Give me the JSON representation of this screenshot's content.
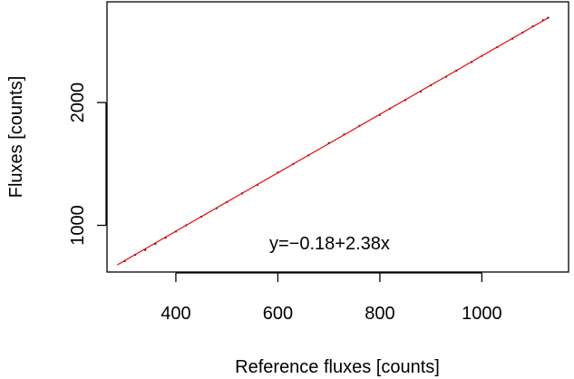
{
  "chart_data": {
    "type": "scatter",
    "xlabel": "Reference fluxes [counts]",
    "ylabel": "Fluxes [counts]",
    "xlim": [
      265,
      1170
    ],
    "ylim": [
      620,
      2820
    ],
    "x_ticks": [
      400,
      600,
      800,
      1000
    ],
    "y_ticks": [
      1000,
      2000
    ],
    "x_tick_labels": [
      "400",
      "600",
      "800",
      "1000"
    ],
    "y_tick_labels": [
      "1000",
      "2000"
    ],
    "grid": false,
    "annotation": "y=−0.18+2.38x",
    "fit_line": {
      "intercept": -0.18,
      "slope": 2.38,
      "x_start": 285,
      "x_end": 1130,
      "color": "#e41a1c"
    },
    "point_color": "#000000",
    "point_sample": [
      [
        300,
        710
      ],
      [
        320,
        760
      ],
      [
        340,
        800
      ],
      [
        360,
        850
      ],
      [
        380,
        900
      ],
      [
        400,
        950
      ],
      [
        420,
        1000
      ],
      [
        450,
        1070
      ],
      [
        480,
        1140
      ],
      [
        500,
        1190
      ],
      [
        530,
        1260
      ],
      [
        560,
        1330
      ],
      [
        600,
        1430
      ],
      [
        630,
        1500
      ],
      [
        660,
        1570
      ],
      [
        700,
        1670
      ],
      [
        730,
        1740
      ],
      [
        760,
        1810
      ],
      [
        800,
        1900
      ],
      [
        820,
        1950
      ],
      [
        850,
        2020
      ],
      [
        880,
        2090
      ],
      [
        900,
        2140
      ],
      [
        930,
        2210
      ],
      [
        950,
        2260
      ],
      [
        980,
        2330
      ],
      [
        1000,
        2380
      ],
      [
        1030,
        2450
      ],
      [
        1060,
        2520
      ],
      [
        1080,
        2570
      ],
      [
        1100,
        2620
      ],
      [
        1120,
        2670
      ],
      [
        1130,
        2690
      ]
    ]
  }
}
